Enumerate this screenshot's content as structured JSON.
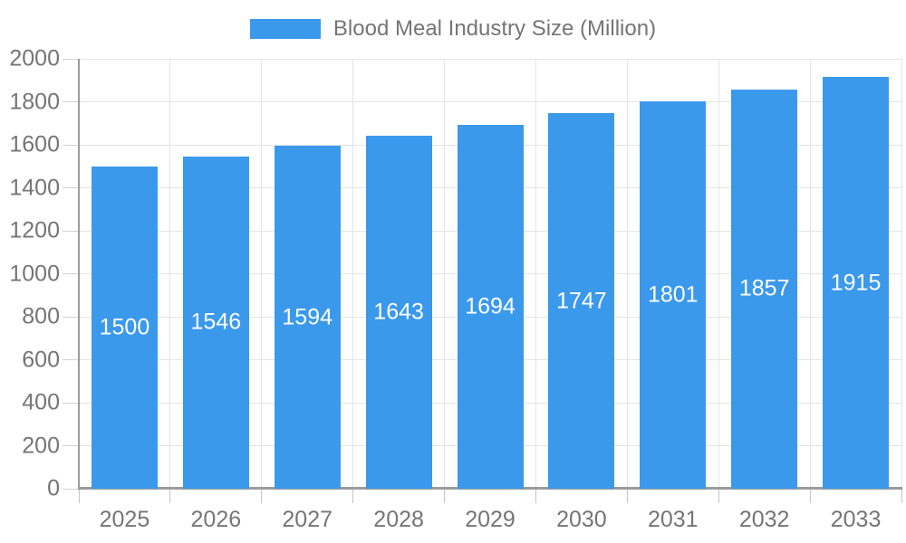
{
  "legend": {
    "label": "Blood Meal Industry Size (Million)"
  },
  "colors": {
    "bar": "#3b99ec",
    "axis_text": "#757575",
    "axis_line": "#9b9b9b",
    "gridline": "#e4e4e4",
    "bar_label_text": "#ffffff",
    "background": "#ffffff"
  },
  "chart_data": {
    "type": "bar",
    "title": "",
    "xlabel": "",
    "ylabel": "",
    "categories": [
      "2025",
      "2026",
      "2027",
      "2028",
      "2029",
      "2030",
      "2031",
      "2032",
      "2033"
    ],
    "series": [
      {
        "name": "Blood Meal Industry Size (Million)",
        "values": [
          1500,
          1546,
          1594,
          1643,
          1694,
          1747,
          1801,
          1857,
          1915
        ]
      }
    ],
    "ylim": [
      0,
      2000
    ],
    "ytick_step": 200,
    "ytick_labels": [
      "0",
      "200",
      "400",
      "600",
      "800",
      "1000",
      "1200",
      "1400",
      "1600",
      "1800",
      "2000"
    ],
    "grid": true,
    "legend_position": "top",
    "bar_label_placement": "centered inside bar, white text"
  }
}
